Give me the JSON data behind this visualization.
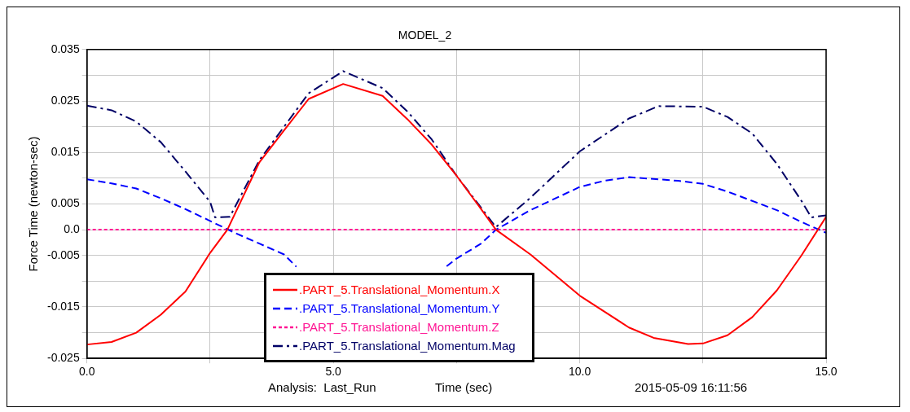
{
  "chart_data": {
    "type": "line",
    "title": "MODEL_2",
    "xlabel": "Time (sec)",
    "ylabel": "Force Time (newton-sec)",
    "annotations": [
      "Analysis:  Last_Run",
      "2015-05-09 16:11:56"
    ],
    "xlim": [
      0,
      15
    ],
    "xticks": [
      {
        "value": 0,
        "label": "0.0"
      },
      {
        "value": 2.5,
        "label": null
      },
      {
        "value": 5,
        "label": "5.0"
      },
      {
        "value": 7.5,
        "label": null
      },
      {
        "value": 10,
        "label": "10.0"
      },
      {
        "value": 12.5,
        "label": null
      },
      {
        "value": 15,
        "label": "15.0"
      }
    ],
    "ylim": [
      -0.025,
      0.035
    ],
    "yticks": [
      -0.025,
      {
        "value": -0.02,
        "label": null
      },
      -0.015,
      {
        "value": -0.01,
        "label": null
      },
      -0.005,
      {
        "value": 0,
        "label": "0.0"
      },
      0.005,
      {
        "value": 0.01,
        "label": null
      },
      0.015,
      {
        "value": 0.02,
        "label": null
      },
      0.025,
      {
        "value": 0.03,
        "label": null
      },
      0.035
    ],
    "grid": true,
    "legend": "bottom",
    "marker": "none",
    "series": [
      {
        "name": ".PART_5.Translational_Momentum.X",
        "color": "#ff0000",
        "line_style": "solid",
        "x": [
          0,
          0.5,
          1,
          1.5,
          2,
          2.5,
          2.85,
          3.5,
          4,
          4.5,
          5.2,
          6,
          6.5,
          7,
          7.5,
          8,
          8.3,
          9,
          10,
          11,
          11.5,
          12.2,
          12.5,
          13,
          13.5,
          14,
          14.5,
          15
        ],
        "values": [
          -0.0223,
          -0.0218,
          -0.02,
          -0.0165,
          -0.012,
          -0.0045,
          0,
          0.0131,
          0.0193,
          0.0254,
          0.0283,
          0.026,
          0.0215,
          0.0165,
          0.0105,
          0.004,
          0,
          -0.0048,
          -0.0128,
          -0.019,
          -0.021,
          -0.0222,
          -0.0221,
          -0.0205,
          -0.017,
          -0.0118,
          -0.005,
          0.0025
        ]
      },
      {
        "name": ".PART_5.Translational_Momentum.Y",
        "color": "#0000ff",
        "line_style": "dashed",
        "x": [
          0,
          0.5,
          1,
          1.5,
          2,
          2.5,
          3,
          3.5,
          4,
          4.25,
          4.5,
          5,
          5.5,
          6,
          6.5,
          7,
          7.3,
          7.5,
          8,
          8.3,
          9,
          10,
          10.5,
          11,
          12,
          12.5,
          13,
          14,
          14.5,
          15
        ],
        "values": [
          0.0098,
          0.009,
          0.008,
          0.0061,
          0.004,
          0.0017,
          -0.0006,
          -0.0027,
          -0.0048,
          -0.0072,
          null,
          null,
          null,
          null,
          null,
          null,
          -0.0071,
          -0.0056,
          -0.0027,
          0,
          0.0038,
          0.0083,
          0.0095,
          0.0102,
          0.0095,
          0.0089,
          0.0074,
          0.0038,
          0.0015,
          -0.0006
        ]
      },
      {
        "name": ".PART_5.Translational_Momentum.Z",
        "color": "#ff1493",
        "line_style": "dotted",
        "x": [
          0,
          15
        ],
        "values": [
          0,
          0
        ]
      },
      {
        "name": ".PART_5.Translational_Momentum.Mag",
        "color": "#000066",
        "line_style": "dashdot",
        "x": [
          0,
          0.5,
          1,
          1.5,
          2,
          2.5,
          2.6,
          2.9,
          3.5,
          4,
          4.5,
          5.2,
          6,
          6.5,
          7,
          7.5,
          8.3,
          9,
          10,
          11,
          11.6,
          12.5,
          13,
          13.5,
          14,
          14.5,
          14.7,
          15
        ],
        "values": [
          0.0241,
          0.0232,
          0.021,
          0.017,
          0.0113,
          0.0054,
          0.0024,
          0.0025,
          0.0135,
          0.02,
          0.0265,
          0.0308,
          0.0275,
          0.023,
          0.0175,
          0.0105,
          0.0005,
          0.0062,
          0.0152,
          0.0216,
          0.024,
          0.0239,
          0.0219,
          0.0187,
          0.0128,
          0.0056,
          0.0024,
          0.0028
        ]
      }
    ]
  }
}
